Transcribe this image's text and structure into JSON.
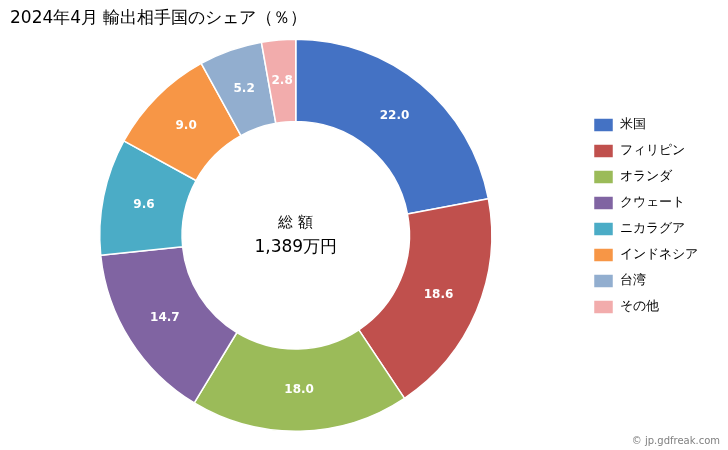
{
  "chart_data": {
    "type": "doughnut",
    "title": "2024年4月 輸出相手国のシェア（％）",
    "categories": [
      "米国",
      "フィリピン",
      "オランダ",
      "クウェート",
      "ニカラグア",
      "インドネシア",
      "台湾",
      "その他"
    ],
    "values": [
      22.0,
      18.6,
      18.0,
      14.7,
      9.6,
      9.0,
      5.2,
      2.8
    ],
    "value_labels": [
      "22.0",
      "18.6",
      "18.0",
      "14.7",
      "9.6",
      "9.0",
      "5.2",
      "2.8"
    ],
    "colors": [
      "#4472C4",
      "#C0504D",
      "#9BBB59",
      "#8064A2",
      "#4BACC6",
      "#F79646",
      "#92AECF",
      "#F2ACAC"
    ],
    "data_labels": true,
    "legend": "right",
    "annotations": [
      "総 額",
      "1,389万円"
    ],
    "source": "© jp.gdfreak.com"
  }
}
